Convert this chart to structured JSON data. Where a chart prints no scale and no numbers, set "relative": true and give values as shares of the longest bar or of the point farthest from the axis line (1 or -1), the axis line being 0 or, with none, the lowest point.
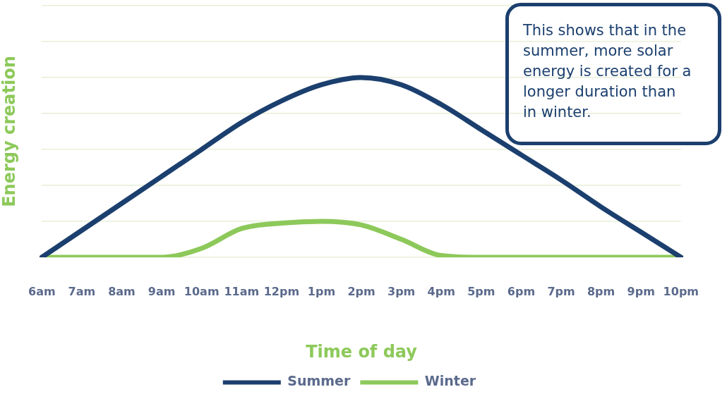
{
  "chart_data": {
    "type": "line",
    "relative": true,
    "xlabel": "Time of day",
    "ylabel": "Energy creation",
    "categories": [
      "6am",
      "7am",
      "8am",
      "9am",
      "10am",
      "11am",
      "12pm",
      "1pm",
      "2pm",
      "3pm",
      "4pm",
      "5pm",
      "6pm",
      "7pm",
      "8pm",
      "9pm",
      "10pm"
    ],
    "series": [
      {
        "name": "Summer",
        "color": "#1b3f6e",
        "values": [
          0,
          0.15,
          0.3,
          0.45,
          0.6,
          0.75,
          0.87,
          0.96,
          1,
          0.96,
          0.85,
          0.71,
          0.57,
          0.43,
          0.28,
          0.14,
          0
        ]
      },
      {
        "name": "Winter",
        "color": "#8dc95a",
        "values": [
          0,
          0,
          0,
          0,
          0.05,
          0.16,
          0.19,
          0.2,
          0.18,
          0.1,
          0.01,
          0,
          0,
          0,
          0,
          0,
          0
        ]
      }
    ],
    "annotations": [
      "This shows that in the summer, more solar energy is created for a longer duration than in winter."
    ],
    "grid": "y",
    "legend": "bottom",
    "marker": "none",
    "line_style": "solid"
  }
}
